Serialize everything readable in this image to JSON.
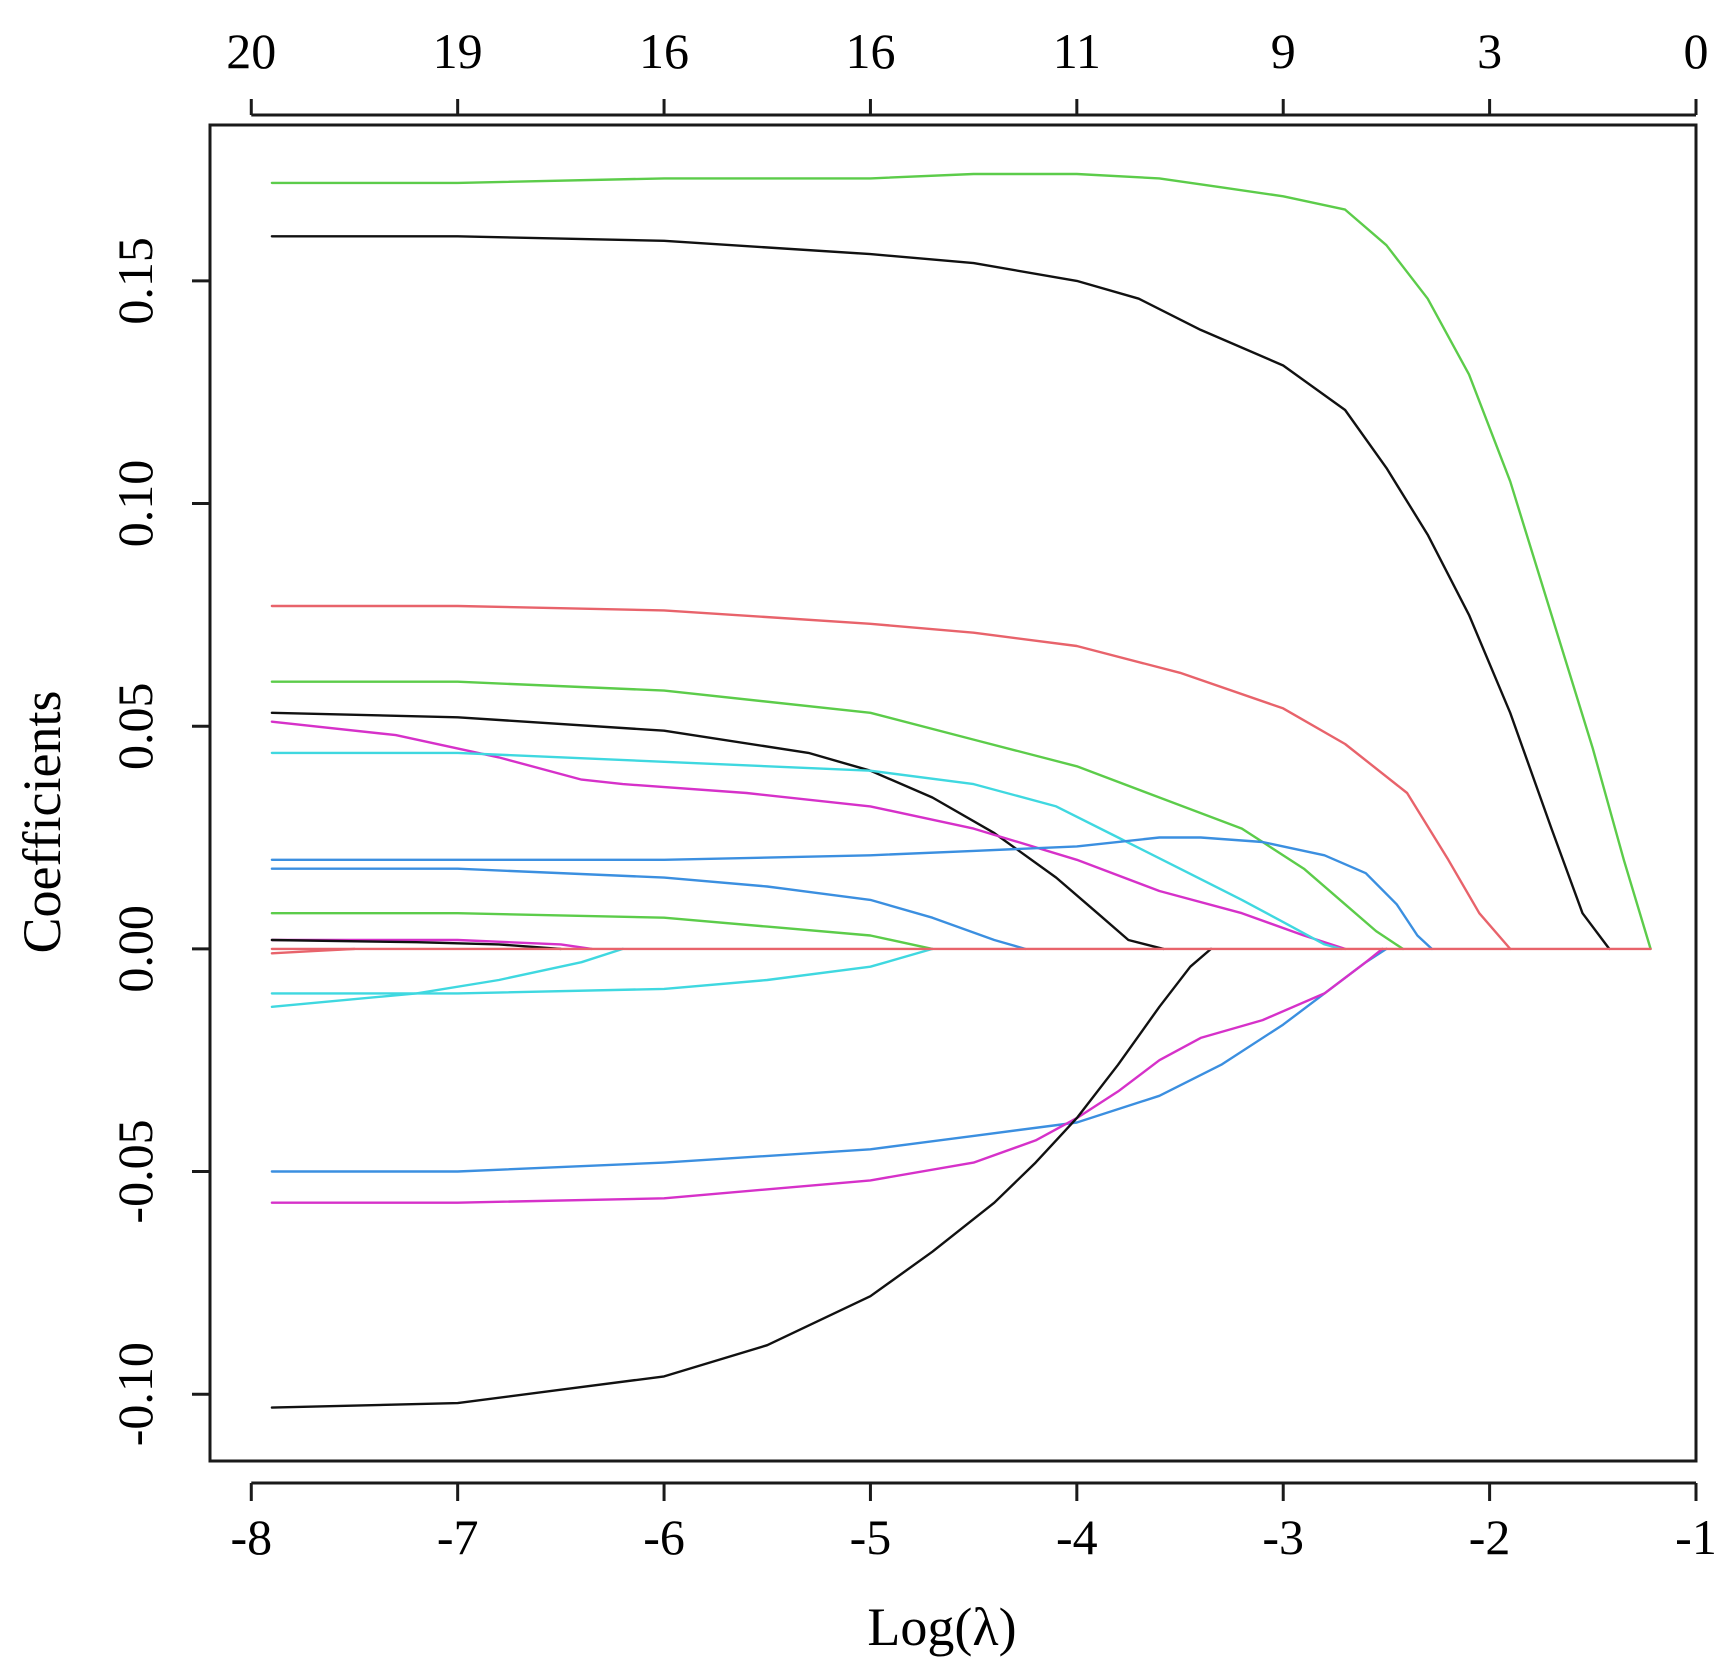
{
  "chart_data": {
    "type": "line",
    "xlabel": "Log(λ)",
    "ylabel": "Coefficients",
    "xlim": [
      -8.2,
      -1.0
    ],
    "ylim": [
      -0.115,
      0.185
    ],
    "x_ticks": [
      -8,
      -7,
      -6,
      -5,
      -4,
      -3,
      -2,
      -1
    ],
    "x_tick_labels": [
      "-8",
      "-7",
      "-6",
      "-5",
      "-4",
      "-3",
      "-2",
      "-1"
    ],
    "y_ticks": [
      -0.1,
      -0.05,
      0.0,
      0.05,
      0.1,
      0.15
    ],
    "y_tick_labels": [
      "-0.10",
      "-0.05",
      "0.00",
      "0.05",
      "0.10",
      "0.15"
    ],
    "top_axis": {
      "positions": [
        -8,
        -7,
        -6,
        -5,
        -4,
        -3,
        -2,
        -1
      ],
      "labels": [
        "20",
        "19",
        "16",
        "16",
        "11",
        "9",
        "3",
        "0"
      ]
    },
    "grid": false,
    "series": [
      {
        "color": "#5ccc4a",
        "x": [
          -7.9,
          -7.6,
          -7.0,
          -6.0,
          -5.0,
          -4.5,
          -4.0,
          -3.6,
          -3.3,
          -3.0,
          -2.7,
          -2.5,
          -2.3,
          -2.1,
          -1.9,
          -1.7,
          -1.5,
          -1.35,
          -1.22
        ],
        "y": [
          0.172,
          0.172,
          0.172,
          0.173,
          0.173,
          0.174,
          0.174,
          0.173,
          0.171,
          0.169,
          0.166,
          0.158,
          0.146,
          0.129,
          0.105,
          0.075,
          0.045,
          0.02,
          0.0
        ]
      },
      {
        "color": "#111111",
        "x": [
          -7.9,
          -7.0,
          -6.0,
          -5.0,
          -4.5,
          -4.0,
          -3.7,
          -3.4,
          -3.0,
          -2.7,
          -2.5,
          -2.3,
          -2.1,
          -1.9,
          -1.7,
          -1.55,
          -1.42
        ],
        "y": [
          0.16,
          0.16,
          0.159,
          0.156,
          0.154,
          0.15,
          0.146,
          0.139,
          0.131,
          0.121,
          0.108,
          0.093,
          0.075,
          0.053,
          0.027,
          0.008,
          0.0
        ]
      },
      {
        "color": "#e8636b",
        "x": [
          -7.9,
          -7.0,
          -6.0,
          -5.0,
          -4.5,
          -4.0,
          -3.5,
          -3.0,
          -2.7,
          -2.4,
          -2.2,
          -2.05,
          -1.9
        ],
        "y": [
          0.077,
          0.077,
          0.076,
          0.073,
          0.071,
          0.068,
          0.062,
          0.054,
          0.046,
          0.035,
          0.02,
          0.008,
          0.0
        ]
      },
      {
        "color": "#5ccc4a",
        "x": [
          -7.9,
          -7.0,
          -6.0,
          -5.0,
          -4.5,
          -4.0,
          -3.6,
          -3.2,
          -2.9,
          -2.7,
          -2.55,
          -2.42
        ],
        "y": [
          0.06,
          0.06,
          0.058,
          0.053,
          0.047,
          0.041,
          0.034,
          0.027,
          0.018,
          0.01,
          0.004,
          0.0
        ]
      },
      {
        "color": "#111111",
        "x": [
          -7.9,
          -7.0,
          -6.0,
          -5.3,
          -5.0,
          -4.7,
          -4.4,
          -4.1,
          -3.9,
          -3.75,
          -3.58
        ],
        "y": [
          0.053,
          0.052,
          0.049,
          0.044,
          0.04,
          0.034,
          0.026,
          0.016,
          0.008,
          0.002,
          0.0
        ]
      },
      {
        "color": "#d631c9",
        "x": [
          -7.9,
          -7.3,
          -6.8,
          -6.4,
          -6.2,
          -5.6,
          -5.0,
          -4.5,
          -4.0,
          -3.6,
          -3.2,
          -2.9,
          -2.7
        ],
        "y": [
          0.051,
          0.048,
          0.043,
          0.038,
          0.037,
          0.035,
          0.032,
          0.027,
          0.02,
          0.013,
          0.008,
          0.003,
          0.0
        ]
      },
      {
        "color": "#3fd8e0",
        "x": [
          -7.9,
          -7.0,
          -6.0,
          -5.0,
          -4.5,
          -4.1,
          -3.8,
          -3.5,
          -3.2,
          -3.0,
          -2.8,
          -2.72
        ],
        "y": [
          0.044,
          0.044,
          0.042,
          0.04,
          0.037,
          0.032,
          0.025,
          0.018,
          0.011,
          0.006,
          0.001,
          0.0
        ]
      },
      {
        "color": "#3b8fe0",
        "x": [
          -7.9,
          -7.0,
          -6.0,
          -5.0,
          -4.5,
          -4.0,
          -3.6,
          -3.4,
          -3.1,
          -2.8,
          -2.6,
          -2.45,
          -2.35,
          -2.28
        ],
        "y": [
          0.02,
          0.02,
          0.02,
          0.021,
          0.022,
          0.023,
          0.025,
          0.025,
          0.024,
          0.021,
          0.017,
          0.01,
          0.003,
          0.0
        ]
      },
      {
        "color": "#3b8fe0",
        "x": [
          -7.9,
          -7.0,
          -6.0,
          -5.5,
          -5.0,
          -4.7,
          -4.4,
          -4.25
        ],
        "y": [
          0.018,
          0.018,
          0.016,
          0.014,
          0.011,
          0.007,
          0.002,
          0.0
        ]
      },
      {
        "color": "#5ccc4a",
        "x": [
          -7.9,
          -7.0,
          -6.0,
          -5.5,
          -5.0,
          -4.8,
          -4.7
        ],
        "y": [
          0.008,
          0.008,
          0.007,
          0.005,
          0.003,
          0.001,
          0.0
        ]
      },
      {
        "color": "#d631c9",
        "x": [
          -7.9,
          -7.0,
          -6.5,
          -6.35
        ],
        "y": [
          0.002,
          0.002,
          0.001,
          0.0
        ]
      },
      {
        "color": "#111111",
        "x": [
          -7.9,
          -7.2,
          -6.8,
          -6.5
        ],
        "y": [
          0.002,
          0.0015,
          0.001,
          0.0
        ]
      },
      {
        "color": "#e8636b",
        "x": [
          -7.9,
          -7.7,
          -7.5
        ],
        "y": [
          -0.001,
          -0.0005,
          0.0
        ]
      },
      {
        "color": "#3fd8e0",
        "x": [
          -7.9,
          -7.2,
          -6.8,
          -6.4,
          -6.2
        ],
        "y": [
          -0.013,
          -0.01,
          -0.007,
          -0.003,
          0.0
        ]
      },
      {
        "color": "#3fd8e0",
        "x": [
          -7.9,
          -7.0,
          -6.0,
          -5.5,
          -5.0,
          -4.7
        ],
        "y": [
          -0.01,
          -0.01,
          -0.009,
          -0.007,
          -0.004,
          0.0
        ]
      },
      {
        "color": "#3b8fe0",
        "x": [
          -7.9,
          -7.0,
          -6.0,
          -5.0,
          -4.5,
          -4.0,
          -3.6,
          -3.3,
          -3.0,
          -2.8,
          -2.6,
          -2.5
        ],
        "y": [
          -0.05,
          -0.05,
          -0.048,
          -0.045,
          -0.042,
          -0.039,
          -0.033,
          -0.026,
          -0.017,
          -0.01,
          -0.003,
          0.0
        ]
      },
      {
        "color": "#d631c9",
        "x": [
          -7.9,
          -7.0,
          -6.0,
          -5.0,
          -4.5,
          -4.2,
          -4.0,
          -3.8,
          -3.6,
          -3.4,
          -3.1,
          -2.8,
          -2.6,
          -2.52
        ],
        "y": [
          -0.057,
          -0.057,
          -0.056,
          -0.052,
          -0.048,
          -0.043,
          -0.038,
          -0.032,
          -0.025,
          -0.02,
          -0.016,
          -0.01,
          -0.003,
          0.0
        ]
      },
      {
        "color": "#111111",
        "x": [
          -7.9,
          -7.0,
          -6.5,
          -6.0,
          -5.5,
          -5.0,
          -4.7,
          -4.4,
          -4.2,
          -4.0,
          -3.8,
          -3.6,
          -3.45,
          -3.35
        ],
        "y": [
          -0.103,
          -0.102,
          -0.099,
          -0.096,
          -0.089,
          -0.078,
          -0.068,
          -0.057,
          -0.048,
          -0.038,
          -0.026,
          -0.013,
          -0.004,
          0.0
        ]
      },
      {
        "color": "#e8636b",
        "x": [
          -7.9,
          -1.22
        ],
        "y": [
          0.0,
          0.0
        ]
      }
    ]
  }
}
